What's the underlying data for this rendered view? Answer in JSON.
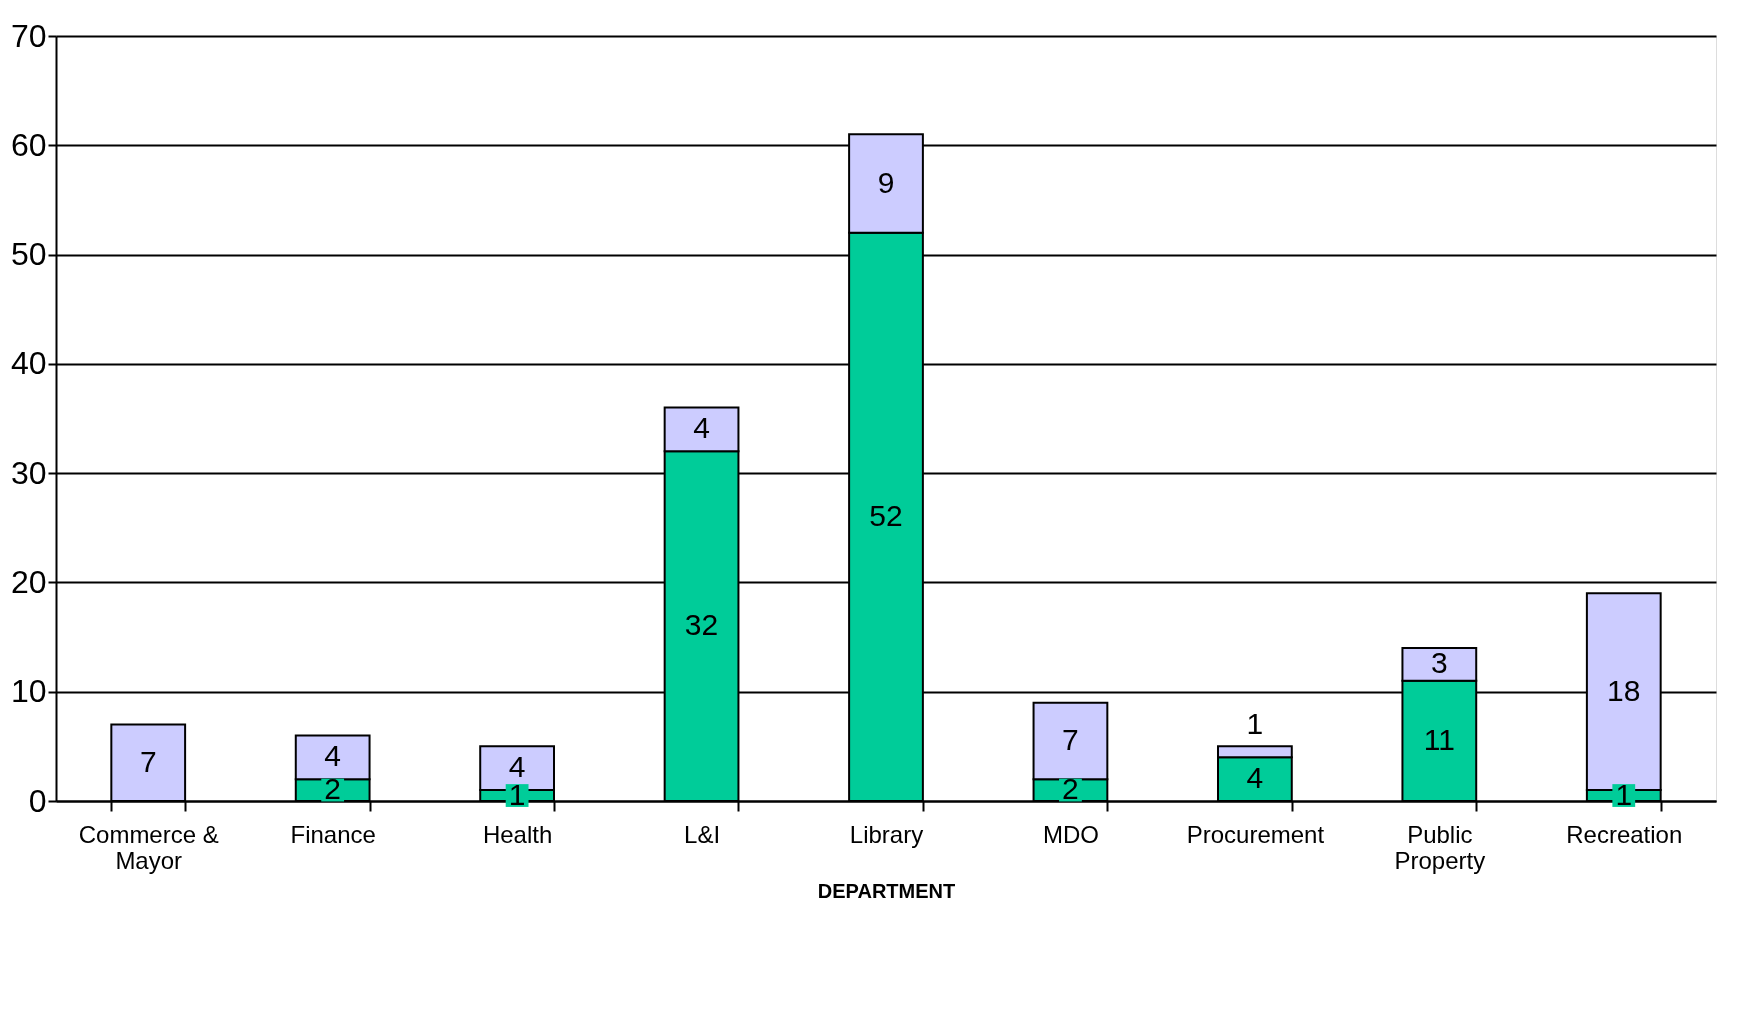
{
  "chart_data": {
    "type": "bar",
    "stacked": true,
    "xlabel": "DEPARTMENT",
    "categories": [
      "Commerce & Mayor",
      "Finance",
      "Health",
      "L&I",
      "Library",
      "MDO",
      "Procurement",
      "Public Property",
      "Recreation"
    ],
    "series": [
      {
        "color": "#00cc99",
        "values": [
          null,
          2,
          1,
          32,
          52,
          2,
          4,
          11,
          1
        ]
      },
      {
        "color": "#ccccff",
        "values": [
          7,
          4,
          4,
          4,
          9,
          7,
          1,
          3,
          18
        ]
      }
    ],
    "ylim": [
      0,
      70
    ],
    "yticks": [
      0,
      10,
      20,
      30,
      40,
      50,
      60,
      70
    ],
    "grid": "y",
    "data_labels": true
  }
}
